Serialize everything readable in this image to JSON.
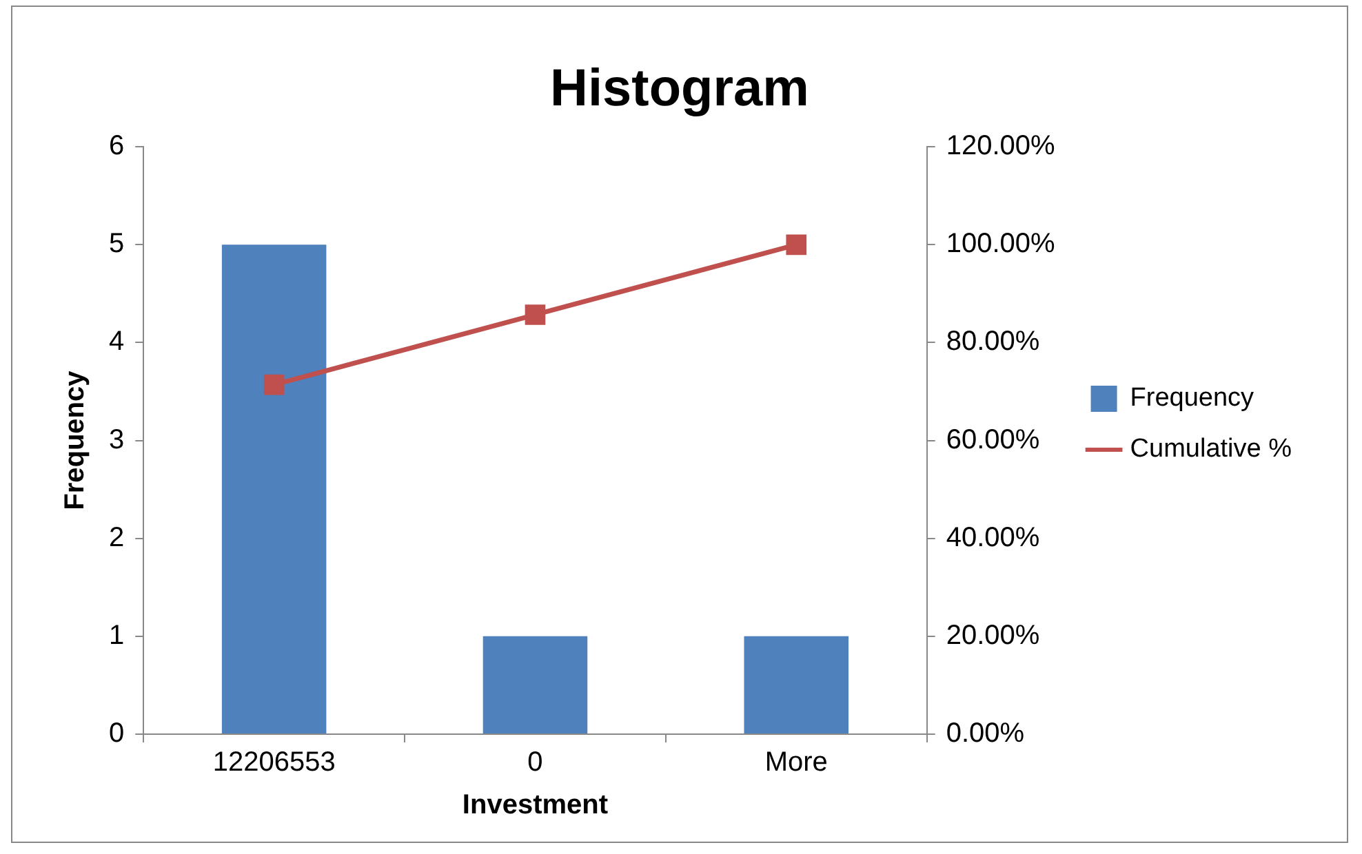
{
  "chart_data": {
    "type": "bar",
    "title": "Histogram",
    "xlabel": "Investment",
    "ylabel": "Frequency",
    "categories": [
      "12206553",
      "0",
      "More"
    ],
    "series": [
      {
        "name": "Frequency",
        "type": "bar",
        "color": "#4f81bd",
        "values": [
          5,
          1,
          1
        ]
      },
      {
        "name": "Cumulative %",
        "type": "line",
        "axis": "y2",
        "color": "#c0504d",
        "marker": "square",
        "line_style": "solid",
        "values": [
          71.4,
          85.7,
          100
        ]
      }
    ],
    "ylim": [
      0,
      6
    ],
    "yticks": [
      0,
      1,
      2,
      3,
      4,
      5,
      6
    ],
    "y2lim": [
      0,
      120
    ],
    "y2ticks": [
      {
        "value": 0,
        "label": "0.00%"
      },
      {
        "value": 20,
        "label": "20.00%"
      },
      {
        "value": 40,
        "label": "40.00%"
      },
      {
        "value": 60,
        "label": "60.00%"
      },
      {
        "value": 80,
        "label": "80.00%"
      },
      {
        "value": 100,
        "label": "100.00%"
      },
      {
        "value": 120,
        "label": "120.00%"
      }
    ],
    "grid": false,
    "legend": "right"
  }
}
